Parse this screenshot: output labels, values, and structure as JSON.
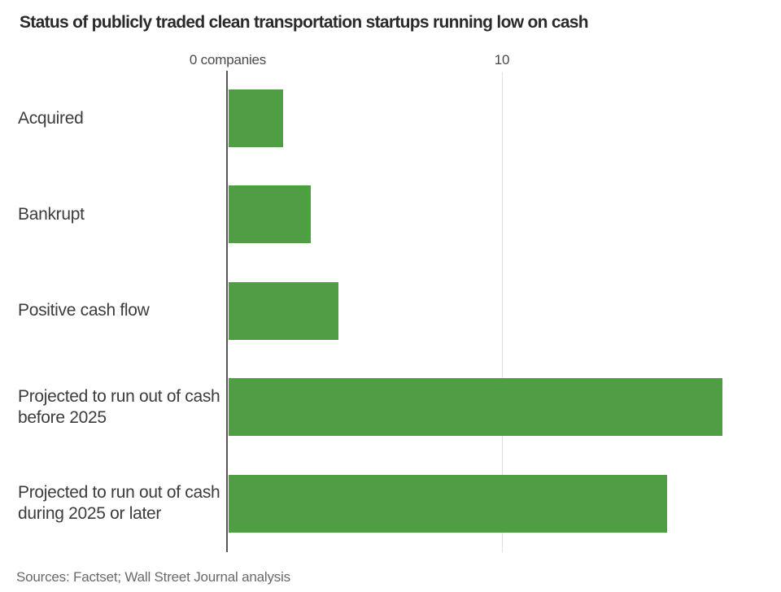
{
  "title": "Status of publicly traded clean transportation startups running low on cash",
  "source": "Sources: Factset; Wall Street Journal analysis",
  "axis": {
    "tick_values": [
      0,
      10
    ],
    "tick_labels": [
      "0 companies",
      "10"
    ]
  },
  "chart_data": {
    "type": "bar",
    "orientation": "horizontal",
    "title": "Status of publicly traded clean transportation startups running low on cash",
    "xlabel": "companies",
    "ylabel": "",
    "xlim": [
      0,
      20
    ],
    "grid": "single vertical gridline at 10, dark baseline axis at 0",
    "legend": "none",
    "categories": [
      "Acquired",
      "Bankrupt",
      "Positive cash flow",
      "Projected to run out of cash\nbefore 2025",
      "Projected to run out of cash\nduring 2025 or later"
    ],
    "values": [
      2,
      3,
      4,
      18,
      16
    ]
  },
  "colors": {
    "bar": "#4f9e44",
    "axis_line": "#58585a",
    "gridline": "#e3e3e3",
    "title_text": "#2a2a2a",
    "category_text": "#3c3c3c",
    "tick_text": "#4a4a4a",
    "source_text": "#696969"
  }
}
